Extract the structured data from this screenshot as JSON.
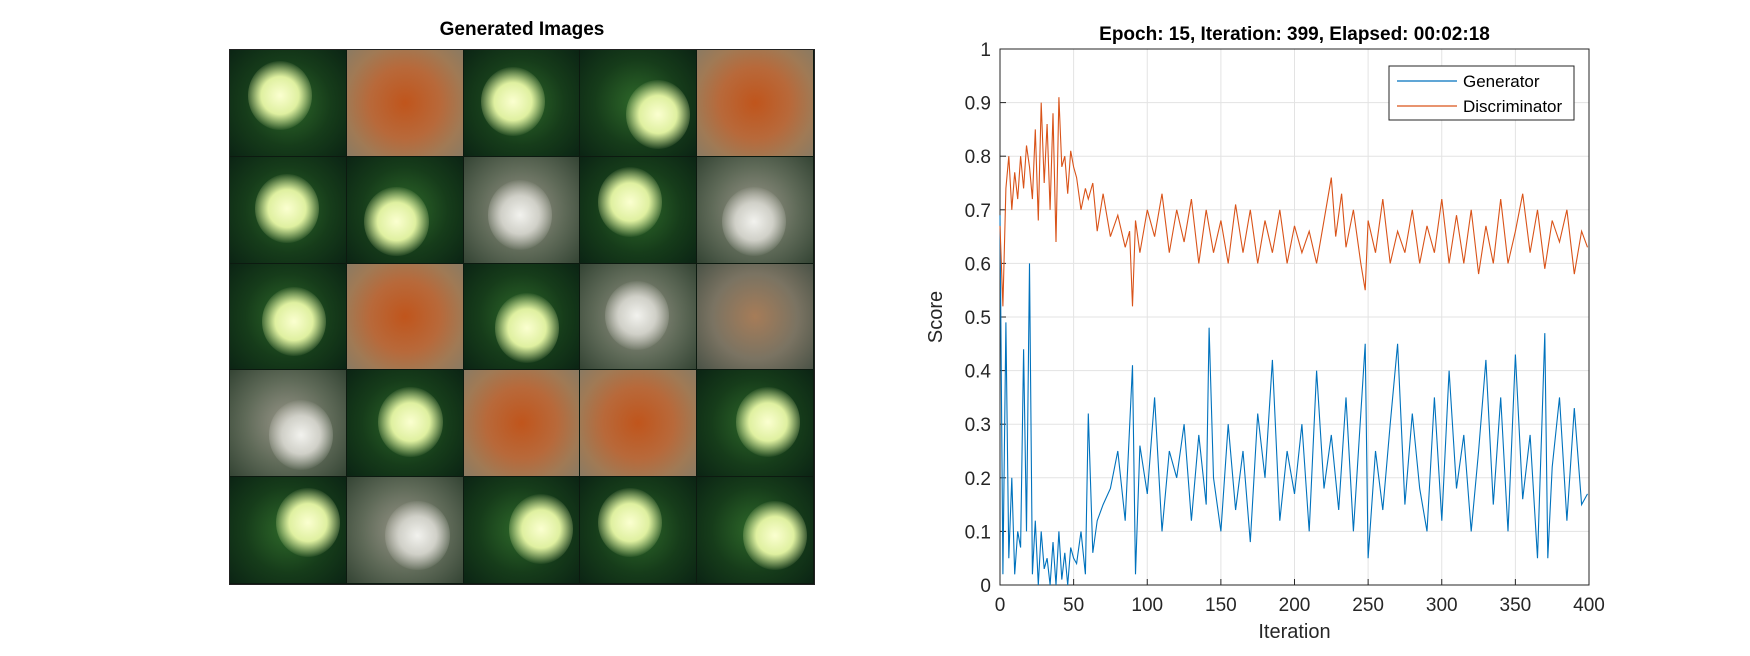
{
  "left_panel": {
    "title": "Generated Images",
    "grid": {
      "rows": 5,
      "cols": 5
    },
    "tiles": [
      "green",
      "orange",
      "green",
      "green",
      "orange",
      "green",
      "green",
      "grey",
      "green",
      "grey",
      "green",
      "orange",
      "green",
      "grey",
      "grey-orange",
      "grey",
      "green",
      "orange",
      "orange",
      "green",
      "green",
      "grey",
      "green",
      "green",
      "green"
    ]
  },
  "chart_data": {
    "type": "line",
    "title": "Epoch: 15, Iteration: 399, Elapsed: 00:02:18",
    "xlabel": "Iteration",
    "ylabel": "Score",
    "xlim": [
      0,
      400
    ],
    "ylim": [
      0,
      1
    ],
    "xticks": [
      0,
      50,
      100,
      150,
      200,
      250,
      300,
      350,
      400
    ],
    "yticks": [
      0,
      0.1,
      0.2,
      0.3,
      0.4,
      0.5,
      0.6,
      0.7,
      0.8,
      0.9,
      1
    ],
    "ytick_labels": [
      "0",
      "0.1",
      "0.2",
      "0.3",
      "0.4",
      "0.5",
      "0.6",
      "0.7",
      "0.8",
      "0.9",
      "1"
    ],
    "grid": true,
    "legend_position": "top-right",
    "series": [
      {
        "name": "Generator",
        "color": "#0072BD",
        "x": [
          0,
          2,
          4,
          6,
          8,
          10,
          12,
          14,
          16,
          18,
          20,
          22,
          24,
          26,
          28,
          30,
          32,
          34,
          36,
          38,
          40,
          42,
          44,
          46,
          48,
          50,
          52,
          55,
          58,
          60,
          63,
          66,
          70,
          75,
          80,
          85,
          90,
          92,
          95,
          100,
          105,
          110,
          115,
          120,
          125,
          130,
          135,
          140,
          142,
          145,
          150,
          155,
          160,
          165,
          170,
          175,
          180,
          185,
          190,
          195,
          200,
          205,
          210,
          215,
          220,
          225,
          230,
          235,
          240,
          245,
          248,
          250,
          255,
          260,
          265,
          270,
          275,
          280,
          285,
          290,
          295,
          300,
          305,
          310,
          315,
          320,
          325,
          330,
          335,
          340,
          345,
          350,
          355,
          360,
          365,
          368,
          370,
          372,
          375,
          380,
          385,
          390,
          395,
          399
        ],
        "values": [
          0.69,
          0.02,
          0.49,
          0.05,
          0.2,
          0.02,
          0.1,
          0.07,
          0.44,
          0.1,
          0.6,
          0.02,
          0.12,
          0.0,
          0.1,
          0.03,
          0.05,
          0.0,
          0.08,
          0.0,
          0.1,
          0.01,
          0.06,
          0.0,
          0.07,
          0.05,
          0.04,
          0.1,
          0.02,
          0.32,
          0.06,
          0.12,
          0.15,
          0.18,
          0.25,
          0.12,
          0.41,
          0.02,
          0.26,
          0.17,
          0.35,
          0.1,
          0.25,
          0.2,
          0.3,
          0.12,
          0.28,
          0.15,
          0.48,
          0.2,
          0.1,
          0.3,
          0.14,
          0.25,
          0.08,
          0.32,
          0.2,
          0.42,
          0.12,
          0.25,
          0.17,
          0.3,
          0.1,
          0.4,
          0.18,
          0.28,
          0.14,
          0.35,
          0.1,
          0.32,
          0.45,
          0.05,
          0.25,
          0.14,
          0.3,
          0.45,
          0.15,
          0.32,
          0.18,
          0.1,
          0.35,
          0.12,
          0.4,
          0.18,
          0.28,
          0.1,
          0.25,
          0.42,
          0.15,
          0.35,
          0.1,
          0.43,
          0.16,
          0.28,
          0.05,
          0.3,
          0.47,
          0.05,
          0.22,
          0.35,
          0.12,
          0.33,
          0.15,
          0.17
        ]
      },
      {
        "name": "Discriminator",
        "color": "#D95319",
        "x": [
          0,
          2,
          4,
          6,
          8,
          10,
          12,
          14,
          16,
          18,
          20,
          22,
          24,
          26,
          28,
          30,
          32,
          34,
          36,
          38,
          40,
          42,
          44,
          46,
          48,
          50,
          52,
          55,
          58,
          60,
          63,
          66,
          70,
          75,
          80,
          85,
          88,
          90,
          92,
          95,
          100,
          105,
          110,
          115,
          120,
          125,
          130,
          135,
          140,
          145,
          150,
          155,
          160,
          165,
          170,
          175,
          180,
          185,
          190,
          195,
          200,
          205,
          210,
          215,
          220,
          225,
          228,
          232,
          235,
          240,
          245,
          248,
          250,
          255,
          260,
          265,
          270,
          275,
          280,
          285,
          290,
          295,
          300,
          305,
          310,
          315,
          320,
          325,
          330,
          335,
          340,
          345,
          350,
          355,
          360,
          365,
          370,
          375,
          380,
          385,
          390,
          395,
          399
        ],
        "values": [
          0.67,
          0.52,
          0.74,
          0.8,
          0.7,
          0.77,
          0.72,
          0.8,
          0.74,
          0.82,
          0.78,
          0.72,
          0.85,
          0.68,
          0.9,
          0.75,
          0.86,
          0.7,
          0.88,
          0.64,
          0.91,
          0.78,
          0.8,
          0.73,
          0.81,
          0.78,
          0.76,
          0.7,
          0.74,
          0.72,
          0.75,
          0.66,
          0.73,
          0.65,
          0.69,
          0.63,
          0.66,
          0.52,
          0.68,
          0.62,
          0.7,
          0.65,
          0.73,
          0.62,
          0.7,
          0.64,
          0.72,
          0.6,
          0.7,
          0.62,
          0.68,
          0.6,
          0.71,
          0.62,
          0.7,
          0.6,
          0.68,
          0.62,
          0.7,
          0.6,
          0.67,
          0.62,
          0.66,
          0.6,
          0.68,
          0.76,
          0.65,
          0.73,
          0.63,
          0.7,
          0.6,
          0.55,
          0.68,
          0.62,
          0.72,
          0.6,
          0.66,
          0.62,
          0.7,
          0.6,
          0.67,
          0.62,
          0.72,
          0.6,
          0.69,
          0.6,
          0.7,
          0.58,
          0.67,
          0.6,
          0.72,
          0.6,
          0.66,
          0.73,
          0.62,
          0.7,
          0.59,
          0.68,
          0.64,
          0.7,
          0.58,
          0.66,
          0.63
        ]
      }
    ]
  }
}
